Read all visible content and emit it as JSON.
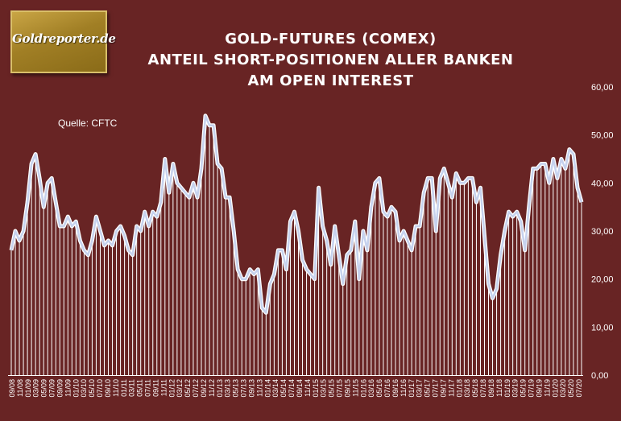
{
  "logo": {
    "text": "Goldreporter.de"
  },
  "source_label": "Quelle: CFTC",
  "colors": {
    "background": "#682424",
    "line": "#c6d2ee",
    "bars": "#ffffff"
  },
  "chart_data": {
    "type": "area",
    "title_lines": [
      "GOLD-FUTURES (COMEX)",
      "ANTEIL SHORT-POSITIONEN ALLER BANKEN",
      "AM OPEN INTEREST"
    ],
    "xlabel": "",
    "ylabel": "",
    "ylim": [
      0,
      60
    ],
    "yticks": [
      "0,00",
      "10,00",
      "20,00",
      "30,00",
      "40,00",
      "50,00",
      "60,00"
    ],
    "grid": false,
    "x_tick_labels": [
      "09/08",
      "11/08",
      "01/09",
      "03/09",
      "05/09",
      "07/09",
      "09/09",
      "11/09",
      "01/10",
      "03/10",
      "05/10",
      "07/10",
      "09/10",
      "11/10",
      "01/11",
      "03/11",
      "05/11",
      "07/11",
      "09/11",
      "11/11",
      "01/12",
      "03/12",
      "05/12",
      "07/12",
      "09/12",
      "11/12",
      "01/13",
      "03/13",
      "05/13",
      "07/13",
      "09/13",
      "11/13",
      "01/14",
      "03/14",
      "05/14",
      "07/14",
      "09/14",
      "11/14",
      "01/15",
      "03/15",
      "05/15",
      "07/15",
      "09/15",
      "11/15",
      "01/16",
      "03/16",
      "05/16",
      "07/16",
      "09/16",
      "11/16",
      "01/17",
      "03/17",
      "05/17",
      "07/17",
      "09/17",
      "11/17",
      "01/18",
      "03/18",
      "05/18",
      "07/18",
      "09/18",
      "11/18",
      "01/19",
      "03/19",
      "05/19",
      "07/19",
      "09/19",
      "11/19",
      "01/20",
      "03/20",
      "05/20",
      "07/20"
    ],
    "values": [
      26,
      30,
      28,
      30,
      36,
      44,
      46,
      41,
      35,
      40,
      41,
      36,
      31,
      31,
      33,
      31,
      32,
      28,
      26,
      25,
      28,
      33,
      30,
      27,
      28,
      27,
      30,
      31,
      29,
      26,
      25,
      31,
      30,
      34,
      31,
      34,
      33,
      36,
      45,
      38,
      44,
      40,
      39,
      38,
      37,
      40,
      37,
      43,
      54,
      52,
      52,
      44,
      43,
      37,
      37,
      30,
      22,
      20,
      20,
      22,
      21,
      22,
      14,
      13,
      19,
      21,
      26,
      26,
      22,
      32,
      34,
      30,
      24,
      22,
      21,
      20,
      39,
      31,
      28,
      23,
      31,
      25,
      19,
      25,
      26,
      32,
      20,
      30,
      26,
      35,
      40,
      41,
      34,
      33,
      35,
      34,
      28,
      30,
      28,
      26,
      31,
      31,
      38,
      41,
      41,
      30,
      41,
      43,
      40,
      37,
      42,
      40,
      40,
      41,
      41,
      36,
      39,
      29,
      19,
      16,
      18,
      25,
      30,
      34,
      33,
      34,
      32,
      26,
      35,
      43,
      43,
      44,
      44,
      40,
      45,
      41,
      45,
      43,
      47,
      46,
      39,
      36
    ]
  }
}
